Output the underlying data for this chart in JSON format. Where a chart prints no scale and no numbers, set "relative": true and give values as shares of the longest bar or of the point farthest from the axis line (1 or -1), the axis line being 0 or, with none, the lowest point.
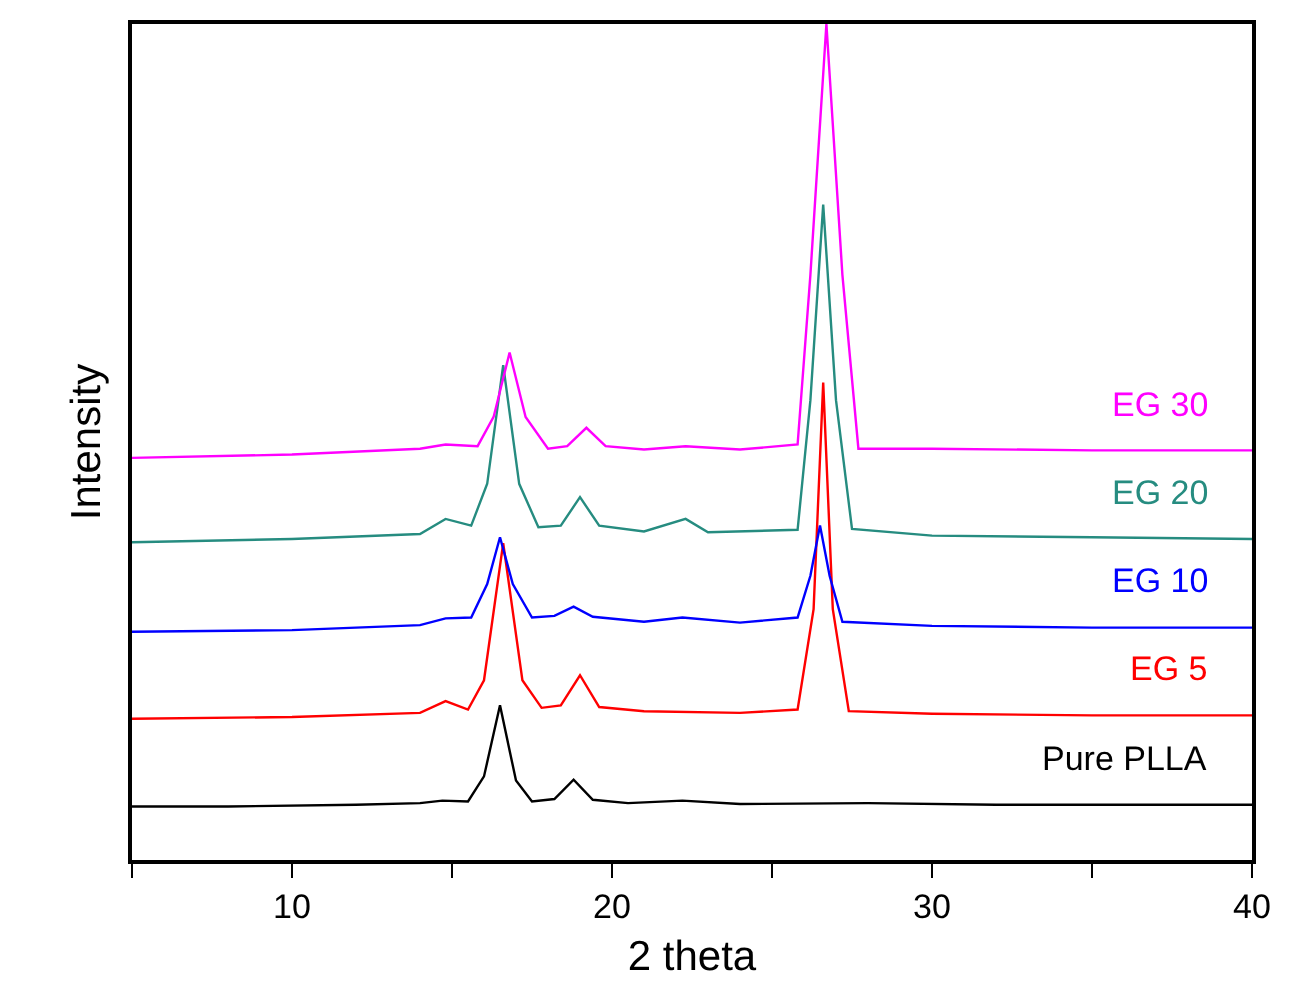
{
  "chart_data": {
    "type": "line",
    "relative": true,
    "xlabel": "2 theta",
    "ylabel": "Intensity",
    "xlim": [
      5,
      40
    ],
    "xticks": [
      {
        "value": 5,
        "label": null
      },
      10,
      {
        "value": 15,
        "label": null
      },
      20,
      {
        "value": 25,
        "label": null
      },
      30,
      {
        "value": 35,
        "label": null
      },
      40
    ],
    "legend": false,
    "marker": "none",
    "line_style": "solid",
    "series": [
      {
        "name": "Pure PLLA",
        "color": "#000000",
        "x": [
          5,
          8,
          12,
          14,
          14.7,
          15.5,
          16,
          16.5,
          17,
          17.5,
          18.2,
          18.8,
          19.4,
          20.5,
          22.2,
          24,
          28,
          32,
          36,
          40
        ],
        "values": [
          0.064,
          0.064,
          0.066,
          0.068,
          0.071,
          0.07,
          0.1,
          0.185,
          0.095,
          0.07,
          0.073,
          0.096,
          0.072,
          0.068,
          0.071,
          0.067,
          0.068,
          0.066,
          0.066,
          0.066
        ]
      },
      {
        "name": "EG 5",
        "color": "#ff0000",
        "x": [
          5,
          10,
          14,
          14.8,
          15.5,
          16,
          16.6,
          17.2,
          17.8,
          18.4,
          19.0,
          19.6,
          21,
          24,
          25.8,
          26.3,
          26.6,
          26.9,
          27.4,
          30,
          35,
          40
        ],
        "values": [
          0.169,
          0.171,
          0.176,
          0.19,
          0.18,
          0.215,
          0.379,
          0.215,
          0.182,
          0.185,
          0.221,
          0.183,
          0.178,
          0.176,
          0.18,
          0.3,
          0.571,
          0.3,
          0.178,
          0.175,
          0.173,
          0.173
        ]
      },
      {
        "name": "EG 10",
        "color": "#0000ff",
        "x": [
          5,
          10,
          14,
          14.8,
          15.6,
          16.1,
          16.5,
          16.9,
          17.5,
          18.2,
          18.8,
          19.4,
          21,
          22.2,
          24,
          25.8,
          26.2,
          26.5,
          26.8,
          27.2,
          30,
          35,
          40
        ],
        "values": [
          0.273,
          0.275,
          0.281,
          0.289,
          0.29,
          0.33,
          0.386,
          0.33,
          0.29,
          0.292,
          0.303,
          0.291,
          0.285,
          0.29,
          0.284,
          0.29,
          0.34,
          0.4,
          0.34,
          0.285,
          0.28,
          0.278,
          0.278
        ]
      },
      {
        "name": "EG 20",
        "color": "#268c80",
        "x": [
          5,
          10,
          14,
          14.8,
          15.6,
          16.1,
          16.6,
          17.1,
          17.7,
          18.4,
          19.0,
          19.6,
          21,
          22.3,
          23,
          25.8,
          26.2,
          26.6,
          27.0,
          27.5,
          30,
          35,
          40
        ],
        "values": [
          0.38,
          0.384,
          0.39,
          0.408,
          0.4,
          0.45,
          0.592,
          0.45,
          0.398,
          0.4,
          0.434,
          0.4,
          0.393,
          0.408,
          0.392,
          0.395,
          0.55,
          0.784,
          0.55,
          0.396,
          0.388,
          0.386,
          0.384
        ]
      },
      {
        "name": "EG 30",
        "color": "#ff00ff",
        "x": [
          5,
          10,
          14,
          14.8,
          15.8,
          16.3,
          16.8,
          17.3,
          18,
          18.6,
          19.2,
          19.8,
          21,
          22.3,
          24,
          25.8,
          26.2,
          26.7,
          27.2,
          27.7,
          30,
          35,
          40
        ],
        "values": [
          0.481,
          0.485,
          0.492,
          0.497,
          0.495,
          0.53,
          0.607,
          0.53,
          0.492,
          0.495,
          0.517,
          0.495,
          0.491,
          0.495,
          0.491,
          0.497,
          0.7,
          1.0,
          0.7,
          0.492,
          0.492,
          0.49,
          0.49
        ]
      }
    ]
  }
}
